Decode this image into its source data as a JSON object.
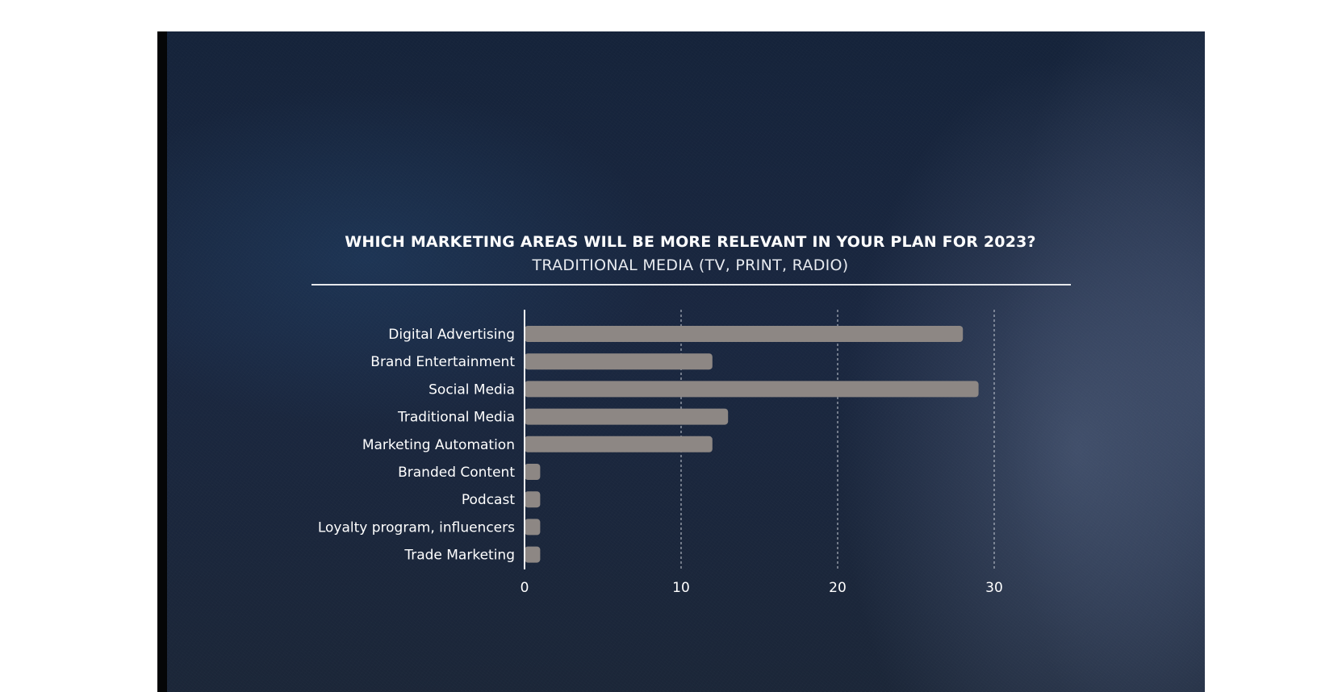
{
  "chart_data": {
    "type": "bar",
    "orientation": "horizontal",
    "title": "WHICH MARKETING AREAS WILL BE MORE RELEVANT IN YOUR PLAN FOR 2023?",
    "subtitle": "TRADITIONAL MEDIA (TV, PRINT, RADIO)",
    "categories": [
      "Digital Advertising",
      "Brand Entertainment",
      "Social Media",
      "Traditional Media",
      "Marketing Automation",
      "Branded Content",
      "Podcast",
      "Loyalty program, influencers",
      "Trade Marketing"
    ],
    "values": [
      28,
      12,
      29,
      13,
      12,
      1,
      1,
      1,
      1
    ],
    "xlim": [
      0,
      35
    ],
    "xticks": [
      "0",
      "10",
      "20",
      "30"
    ],
    "grid": "vertical dashed",
    "bar_color": "#8d8784",
    "text_color": "#ffffff"
  }
}
